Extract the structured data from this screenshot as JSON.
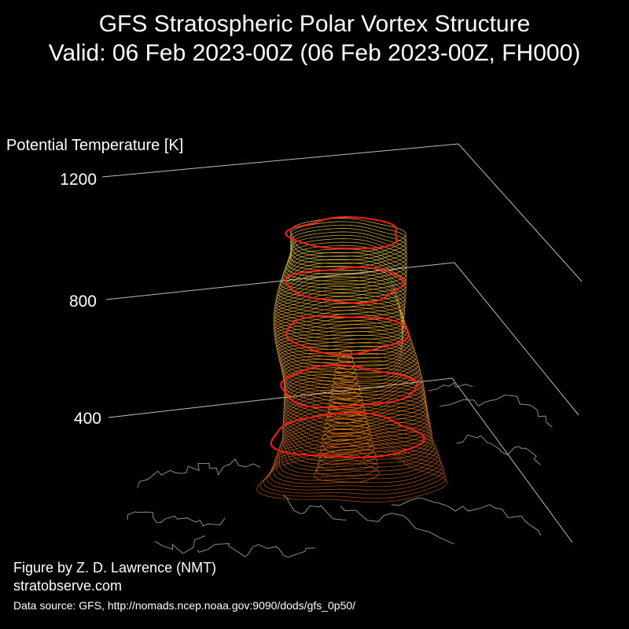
{
  "title": {
    "line1": "GFS Stratospheric Polar Vortex Structure",
    "line2": "Valid: 06 Feb 2023-00Z  (06 Feb 2023-00Z, FH000)"
  },
  "credits": {
    "author": "Figure by Z. D. Lawrence (NMT)",
    "website": "stratobserve.com",
    "source": "Data source: GFS, http://nomads.ncep.noaa.gov:9090/dods/gfs_0p50/"
  },
  "colors": {
    "background": "#000000",
    "axis_lines": "#bdbdbd",
    "highlight_contour": "#ff1a1a",
    "low_level_contour": "#c85a00",
    "mid_level_contour": "#ff9a1a",
    "high_level_contour": "#ffe04a",
    "coastlines": "#8a8a8a"
  },
  "chart_data": {
    "type": "3d-isosurface",
    "zlabel": "Potential Temperature [K]",
    "z_ticks": [
      "400",
      "800",
      "1200"
    ],
    "z_tick_values": [
      400,
      800,
      1200
    ],
    "highlighted_levels_k": [
      400,
      600,
      800,
      1000,
      1200
    ],
    "grid": true,
    "base_map": "northern-hemisphere-coastlines"
  }
}
